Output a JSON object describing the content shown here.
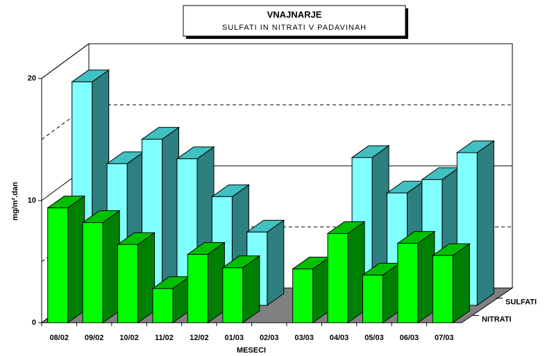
{
  "chart_data": {
    "type": "bar3d",
    "title": "VNAJNARJE",
    "subtitle": "SULFATI IN NITRATI V PADAVINAH",
    "y_label": "mg/m².dan",
    "x_label": "MESECI",
    "categories": [
      "08/02",
      "09/02",
      "10/02",
      "11/02",
      "12/02",
      "01/03",
      "02/03",
      "03/03",
      "04/03",
      "05/03",
      "06/03",
      "07/03"
    ],
    "series": [
      {
        "name": "SULFATI",
        "color": "#80ffff",
        "top_color": "#40c0c0",
        "side_color": "#2e7f80",
        "values": [
          18.3,
          11.6,
          13.6,
          12.0,
          8.9,
          6.0,
          null,
          null,
          12.1,
          9.2,
          10.3,
          12.5
        ]
      },
      {
        "name": "NITRATI",
        "color": "#00ff00",
        "top_color": "#00c000",
        "side_color": "#008000",
        "values": [
          9.4,
          8.2,
          6.4,
          2.8,
          5.6,
          4.5,
          null,
          4.4,
          7.3,
          3.9,
          6.5,
          5.5
        ]
      }
    ],
    "ylim": [
      0,
      20
    ],
    "yticks": [
      0,
      10,
      20
    ],
    "minor_yticks": [
      5,
      15
    ],
    "grid": true
  }
}
